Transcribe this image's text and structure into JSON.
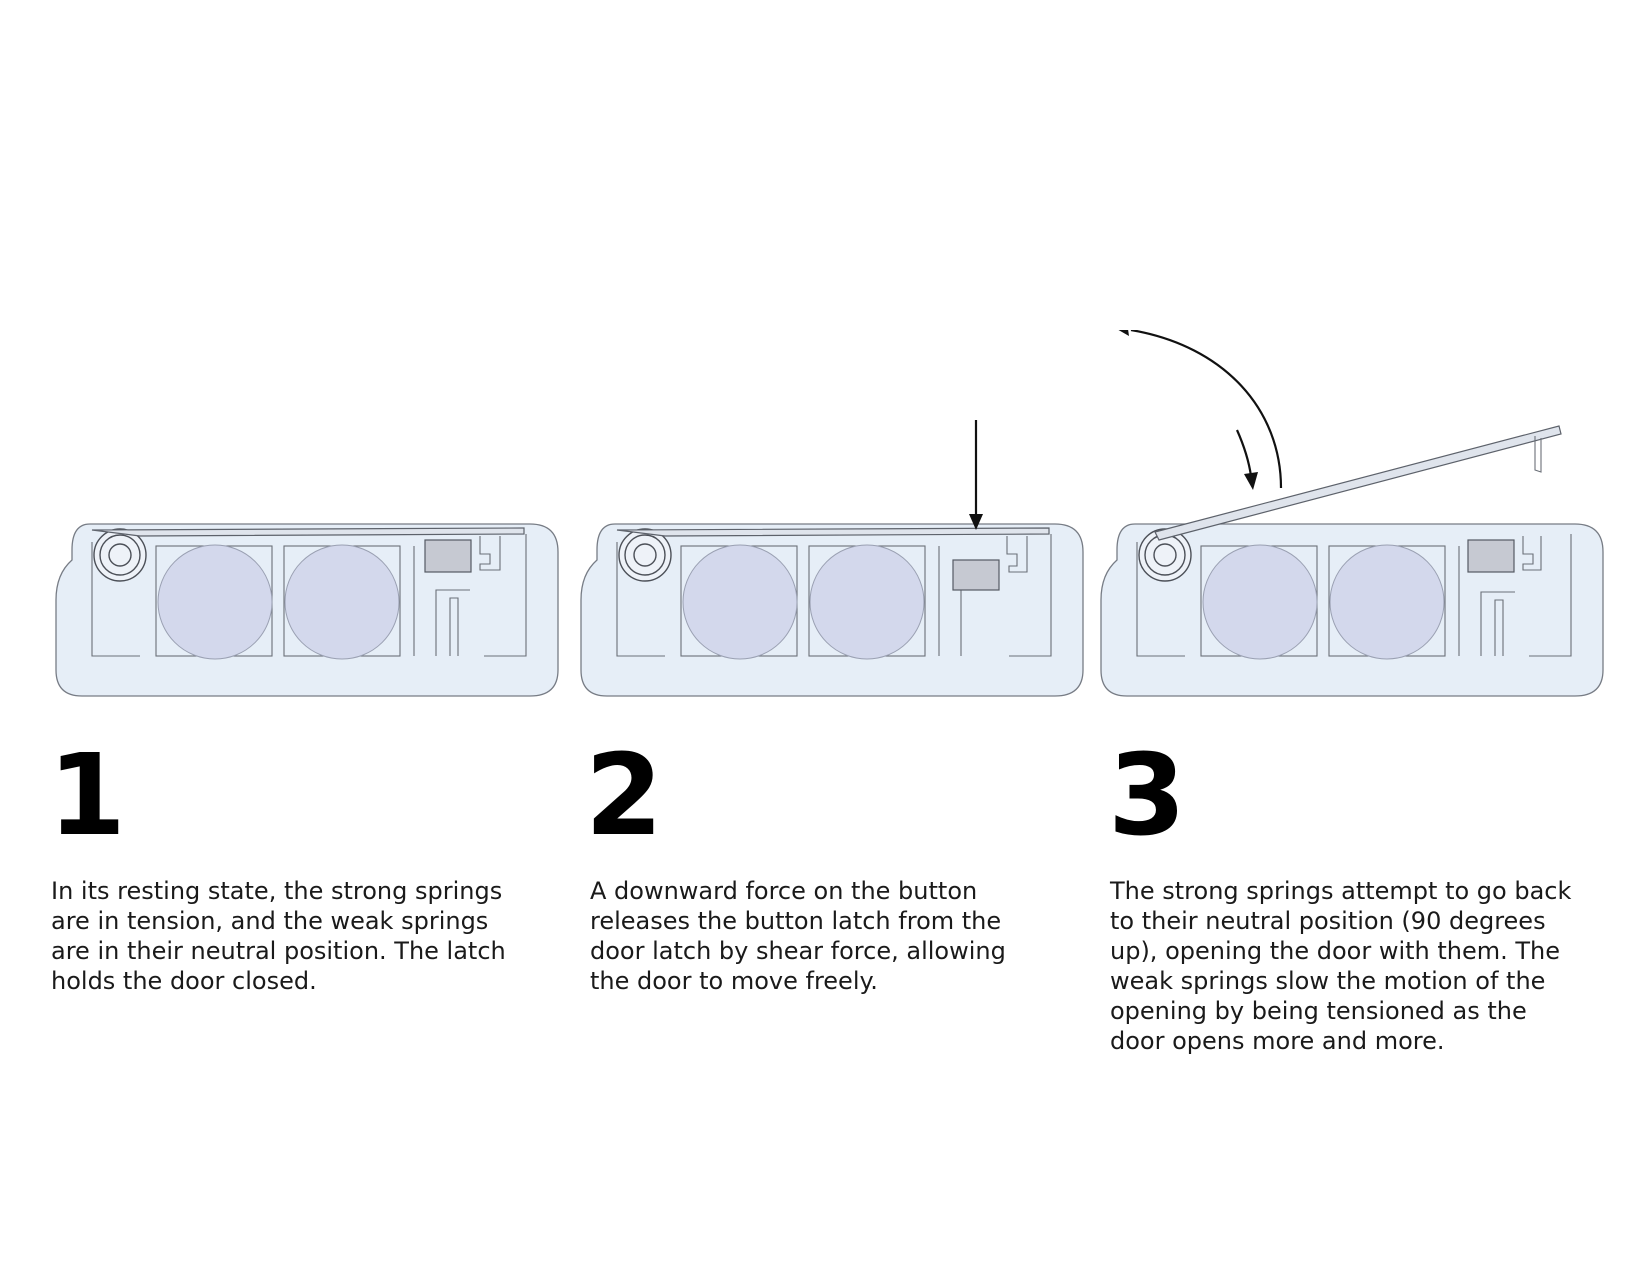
{
  "steps": [
    {
      "number": "1",
      "text": "In its resting state, the strong springs\nare in tension, and the weak springs\nare in their neutral position. The latch\nholds the door closed."
    },
    {
      "number": "2",
      "text": "A downward force on the button\nreleases the button latch from the\ndoor latch by shear force, allowing\nthe door to move freely."
    },
    {
      "number": "3",
      "text": "The strong springs attempt to go back\nto their neutral position (90 degrees\nup), opening the door with them. The\nweak springs slow the motion of the\nopening by being tensioned as the\ndoor opens more and more."
    }
  ],
  "colors": {
    "case_fill": "#e6eef7",
    "battery_fill": "#d3d8ec",
    "outline": "#6b7078",
    "text": "#1a1a1a"
  }
}
